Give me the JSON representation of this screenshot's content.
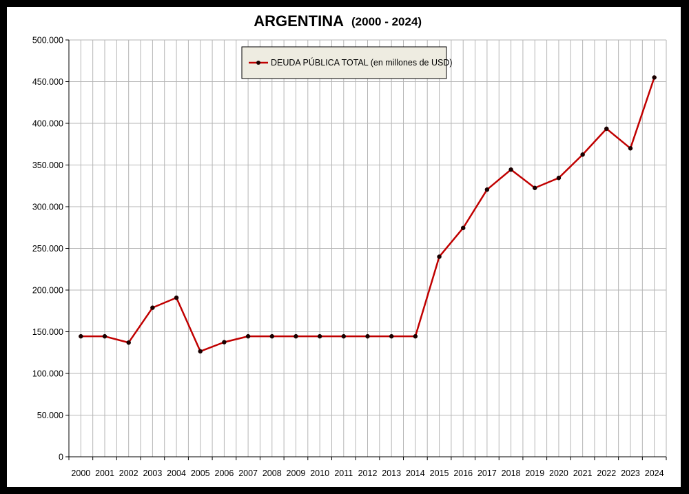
{
  "chart_data": {
    "type": "line",
    "title": "ARGENTINA",
    "subtitle": "(2000 - 2024)",
    "xlabel": "",
    "ylabel": "",
    "x": [
      "2000",
      "2001",
      "2002",
      "2003",
      "2004",
      "2005",
      "2006",
      "2007",
      "2008",
      "2009",
      "2010",
      "2011",
      "2012",
      "2013",
      "2014",
      "2015",
      "2016",
      "2017",
      "2018",
      "2019",
      "2020",
      "2021",
      "2022",
      "2023",
      "2024"
    ],
    "series": [
      {
        "name": "DEUDA PÚBLICA TOTAL (en millones de USD)",
        "color": "#c00000",
        "marker_color": "#1a0000",
        "values": [
          144500,
          144500,
          137000,
          178800,
          190800,
          126500,
          137500,
          144500,
          144500,
          144500,
          144500,
          144500,
          144500,
          144500,
          144500,
          240000,
          274500,
          320500,
          344500,
          322500,
          334500,
          362500,
          393500,
          370000,
          455000
        ]
      }
    ],
    "ylim": [
      0,
      500000
    ],
    "yticks": [
      0,
      50000,
      100000,
      150000,
      200000,
      250000,
      300000,
      350000,
      400000,
      450000,
      500000
    ],
    "ytick_labels": [
      "0",
      "50.000",
      "100.000",
      "150.000",
      "200.000",
      "250.000",
      "300.000",
      "350.000",
      "400.000",
      "450.000",
      "500.000"
    ],
    "grid": true,
    "legend_position": "top-left"
  }
}
